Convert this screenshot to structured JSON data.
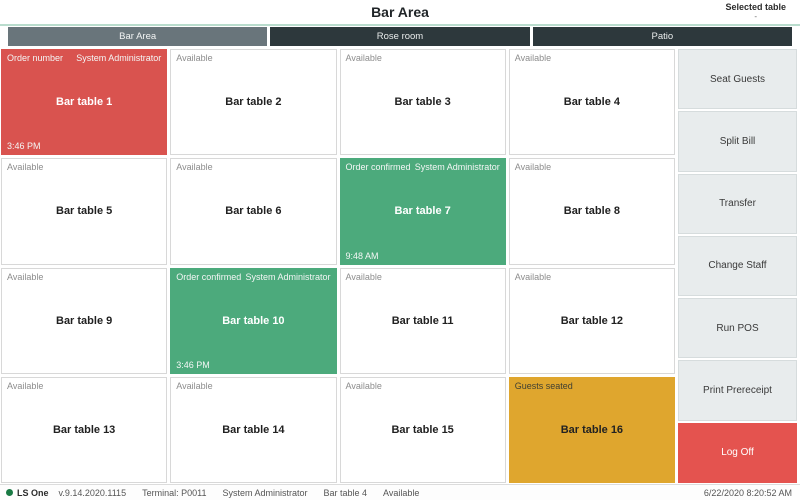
{
  "header": {
    "title": "Bar Area",
    "selected_table_label": "Selected table",
    "selected_table_value": "-"
  },
  "tabs": [
    {
      "label": "Bar Area",
      "active": true
    },
    {
      "label": "Rose room",
      "active": false
    },
    {
      "label": "Patio",
      "active": false
    }
  ],
  "tables": [
    {
      "name": "Bar table 1",
      "status": "Order number",
      "staff": "System Administrator",
      "time": "3:46 PM",
      "state": "red"
    },
    {
      "name": "Bar table 2",
      "status": "Available",
      "state": "white"
    },
    {
      "name": "Bar table 3",
      "status": "Available",
      "state": "white"
    },
    {
      "name": "Bar table 4",
      "status": "Available",
      "state": "white"
    },
    {
      "name": "Bar table 5",
      "status": "Available",
      "state": "white"
    },
    {
      "name": "Bar table 6",
      "status": "Available",
      "state": "white"
    },
    {
      "name": "Bar table 7",
      "status": "Order confirmed",
      "staff": "System Administrator",
      "time": "9:48 AM",
      "state": "green"
    },
    {
      "name": "Bar table 8",
      "status": "Available",
      "state": "white"
    },
    {
      "name": "Bar table 9",
      "status": "Available",
      "state": "white"
    },
    {
      "name": "Bar table 10",
      "status": "Order confirmed",
      "staff": "System Administrator",
      "time": "3:46 PM",
      "state": "green"
    },
    {
      "name": "Bar table 11",
      "status": "Available",
      "state": "white"
    },
    {
      "name": "Bar table 12",
      "status": "Available",
      "state": "white"
    },
    {
      "name": "Bar table 13",
      "status": "Available",
      "state": "white"
    },
    {
      "name": "Bar table 14",
      "status": "Available",
      "state": "white"
    },
    {
      "name": "Bar table 15",
      "status": "Available",
      "state": "white"
    },
    {
      "name": "Bar table 16",
      "status": "Guests seated",
      "state": "yellow"
    }
  ],
  "sidebar": [
    {
      "label": "Seat Guests",
      "danger": false
    },
    {
      "label": "Split Bill",
      "danger": false
    },
    {
      "label": "Transfer",
      "danger": false
    },
    {
      "label": "Change Staff",
      "danger": false
    },
    {
      "label": "Run POS",
      "danger": false
    },
    {
      "label": "Print Prereceipt",
      "danger": false
    },
    {
      "label": "Log Off",
      "danger": true
    }
  ],
  "statusbar": {
    "brand": "LS One",
    "version": "v.9.14.2020.1115",
    "terminal": "Terminal: P0011",
    "user": "System Administrator",
    "table": "Bar table 4",
    "table_status": "Available",
    "datetime": "6/22/2020 8:20:52 AM"
  },
  "colors": {
    "occupied_red": "#d9534f",
    "order_confirmed_green": "#4caa7c",
    "guests_seated_yellow": "#dfa62e",
    "tab_active": "#69757b",
    "tab_inactive": "#2d383c",
    "logoff_red": "#e4534f",
    "header_accent": "#b9dccd",
    "brand_dot_green": "#1a7a44"
  }
}
